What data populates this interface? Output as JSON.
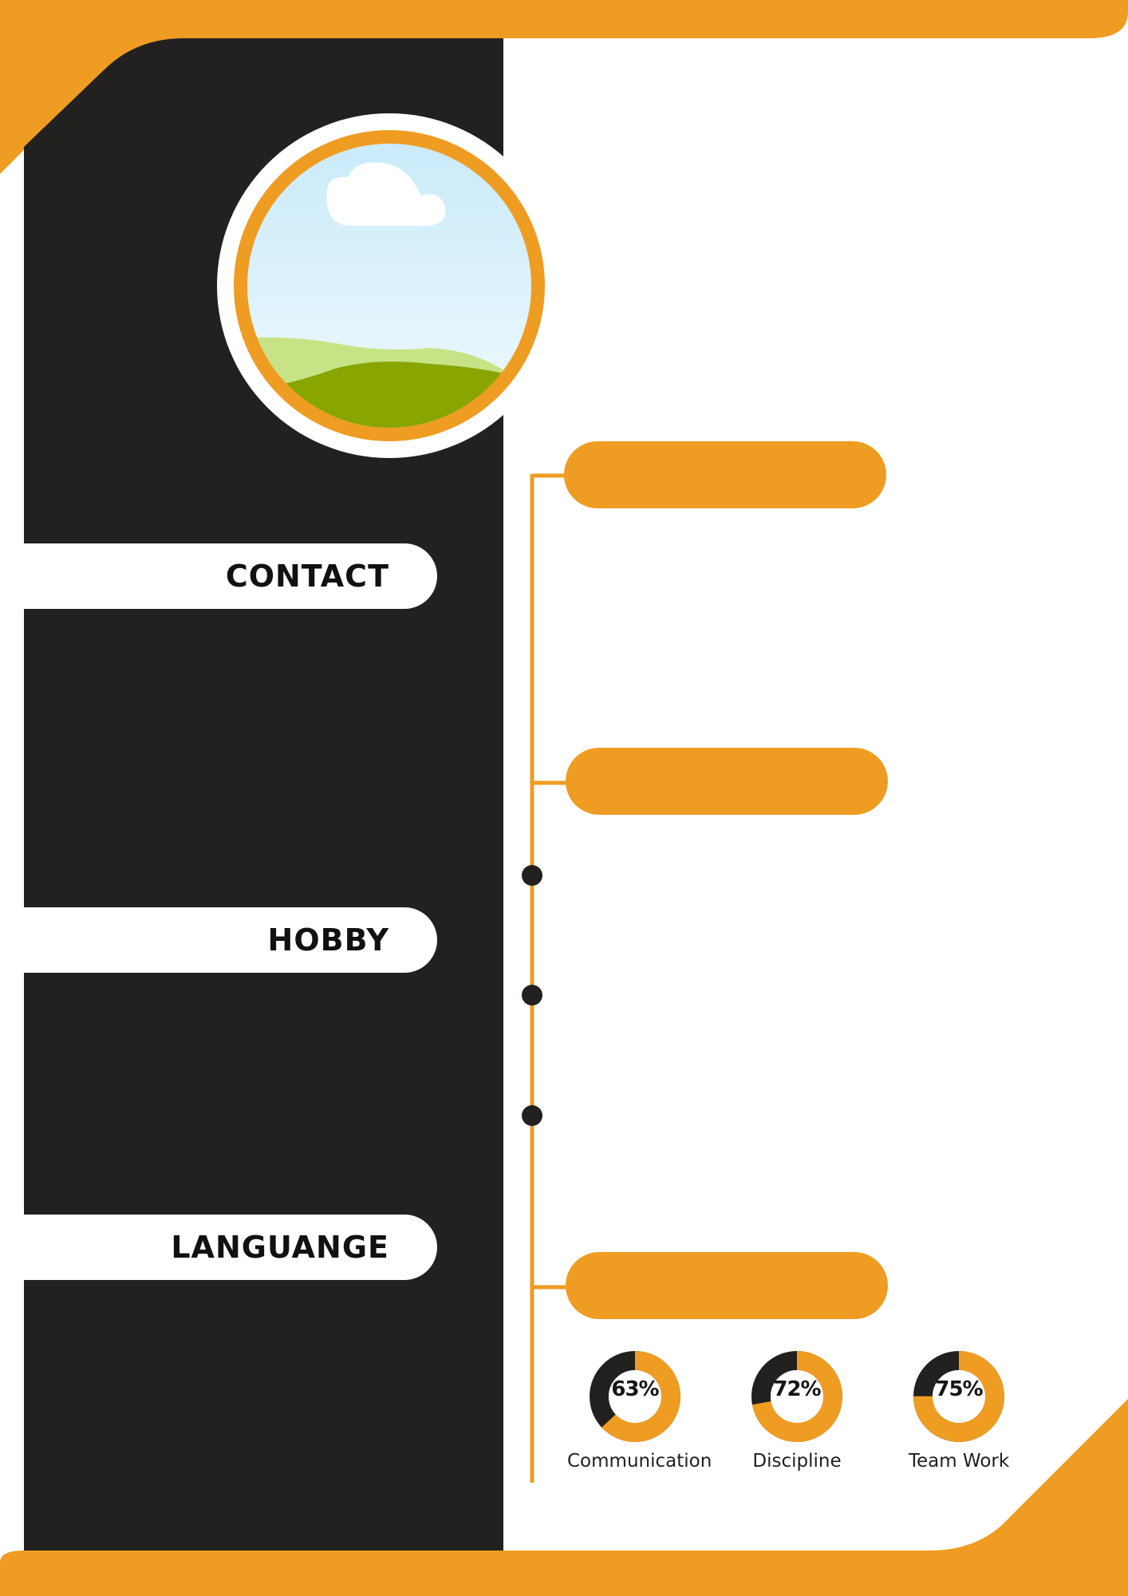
{
  "colors": {
    "accent": "#EF9C22",
    "sidebar": "#222120",
    "background": "#FFFFFF",
    "track": "#222120"
  },
  "photo": {
    "icon": "image-placeholder-icon"
  },
  "sidebar": {
    "sections": [
      {
        "label": "CONTACT"
      },
      {
        "label": "HOBBY"
      },
      {
        "label": "LANGUANGE"
      }
    ]
  },
  "skills": [
    {
      "label": "Communication",
      "percent": 63,
      "percent_text": "63%"
    },
    {
      "label": "Discipline",
      "percent": 72,
      "percent_text": "72%"
    },
    {
      "label": "Team Work",
      "percent": 75,
      "percent_text": "75%"
    }
  ]
}
